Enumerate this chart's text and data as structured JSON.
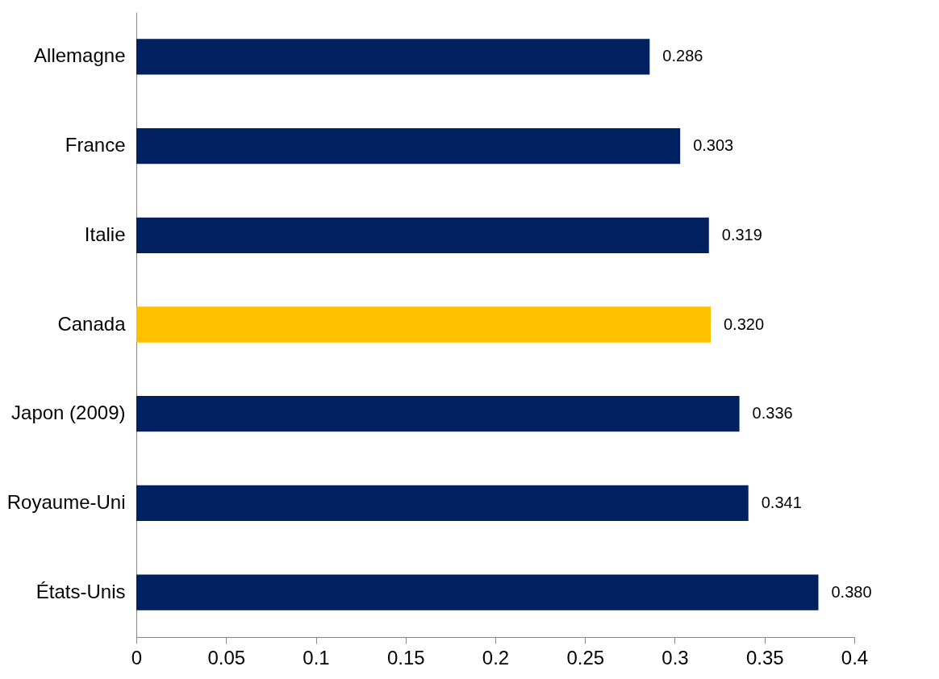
{
  "chart_data": {
    "type": "bar",
    "orientation": "horizontal",
    "categories": [
      "Allemagne",
      "France",
      "Italie",
      "Canada",
      "Japon (2009)",
      "Royaume-Uni",
      "États-Unis"
    ],
    "values": [
      0.286,
      0.303,
      0.319,
      0.32,
      0.336,
      0.341,
      0.38
    ],
    "colors": [
      "#002060",
      "#002060",
      "#002060",
      "#ffc000",
      "#002060",
      "#002060",
      "#002060"
    ],
    "value_labels": [
      "0.286",
      "0.303",
      "0.319",
      "0.320",
      "0.336",
      "0.341",
      "0.380"
    ],
    "xlim": [
      0,
      0.4
    ],
    "xticks": [
      0,
      0.05,
      0.1,
      0.15,
      0.2,
      0.25,
      0.3,
      0.35,
      0.4
    ],
    "grid": false
  }
}
